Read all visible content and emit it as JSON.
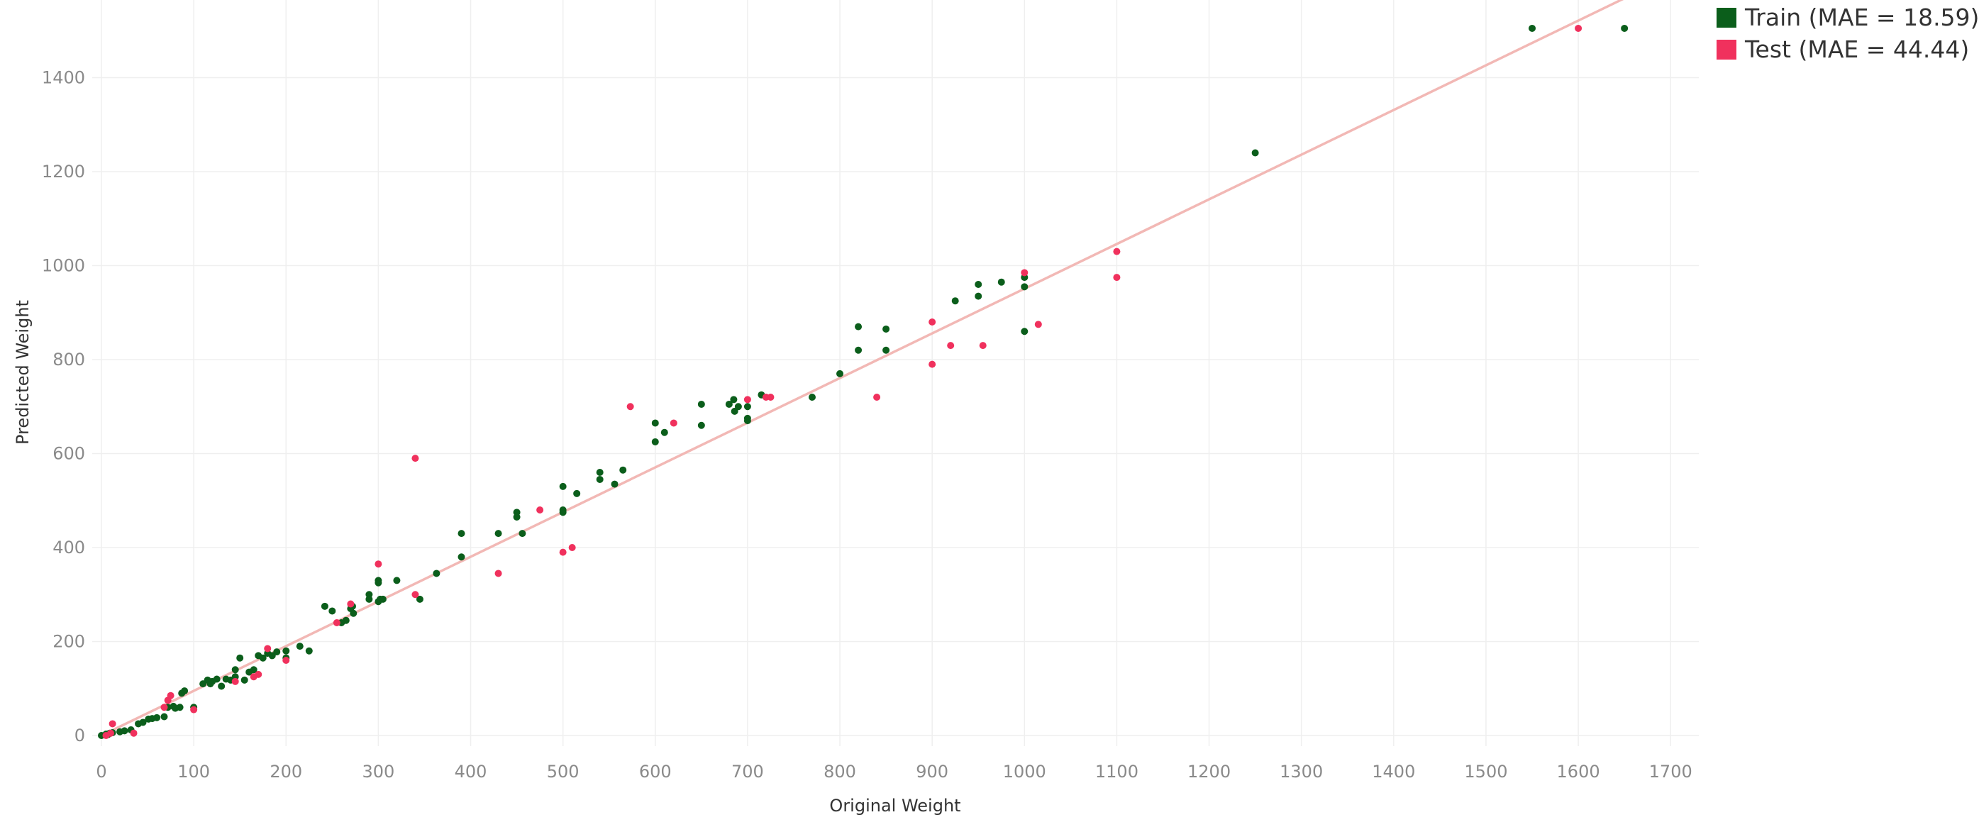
{
  "chart_data": {
    "type": "scatter",
    "title": "",
    "xlabel": "Original Weight",
    "ylabel": "Predicted Weight",
    "xlim": [
      -10,
      1730
    ],
    "ylim": [
      -20,
      1580
    ],
    "x_ticks": [
      0,
      100,
      200,
      300,
      400,
      500,
      600,
      700,
      800,
      900,
      1000,
      1100,
      1200,
      1300,
      1400,
      1500,
      1600,
      1700
    ],
    "y_ticks": [
      0,
      200,
      400,
      600,
      800,
      1000,
      1200,
      1400
    ],
    "grid": true,
    "legend_position": "top-right",
    "reference_line": {
      "from": [
        0,
        0
      ],
      "to": [
        1730,
        1645
      ],
      "color": "#f2b8b5"
    },
    "series": [
      {
        "name": "Train (MAE = 18.59)",
        "color": "#0b5e1b",
        "points": [
          [
            0,
            0
          ],
          [
            5,
            3
          ],
          [
            7,
            2
          ],
          [
            9,
            5
          ],
          [
            12,
            6
          ],
          [
            20,
            8
          ],
          [
            25,
            10
          ],
          [
            32,
            12
          ],
          [
            40,
            25
          ],
          [
            45,
            28
          ],
          [
            51,
            35
          ],
          [
            55,
            36
          ],
          [
            60,
            38
          ],
          [
            68,
            40
          ],
          [
            72,
            60
          ],
          [
            78,
            62
          ],
          [
            80,
            58
          ],
          [
            85,
            60
          ],
          [
            87,
            90
          ],
          [
            90,
            95
          ],
          [
            100,
            60
          ],
          [
            110,
            110
          ],
          [
            115,
            118
          ],
          [
            118,
            110
          ],
          [
            120,
            115
          ],
          [
            125,
            120
          ],
          [
            130,
            105
          ],
          [
            135,
            120
          ],
          [
            140,
            118
          ],
          [
            145,
            125
          ],
          [
            145,
            140
          ],
          [
            150,
            165
          ],
          [
            155,
            118
          ],
          [
            160,
            135
          ],
          [
            165,
            140
          ],
          [
            170,
            170
          ],
          [
            175,
            165
          ],
          [
            180,
            175
          ],
          [
            185,
            170
          ],
          [
            190,
            178
          ],
          [
            200,
            180
          ],
          [
            200,
            165
          ],
          [
            215,
            190
          ],
          [
            225,
            180
          ],
          [
            242,
            275
          ],
          [
            250,
            265
          ],
          [
            260,
            240
          ],
          [
            265,
            245
          ],
          [
            270,
            270
          ],
          [
            272,
            275
          ],
          [
            273,
            260
          ],
          [
            290,
            300
          ],
          [
            290,
            290
          ],
          [
            300,
            325
          ],
          [
            300,
            330
          ],
          [
            300,
            285
          ],
          [
            302,
            290
          ],
          [
            305,
            290
          ],
          [
            320,
            330
          ],
          [
            345,
            290
          ],
          [
            363,
            345
          ],
          [
            390,
            430
          ],
          [
            390,
            380
          ],
          [
            430,
            430
          ],
          [
            450,
            465
          ],
          [
            450,
            475
          ],
          [
            456,
            430
          ],
          [
            500,
            475
          ],
          [
            500,
            480
          ],
          [
            500,
            530
          ],
          [
            515,
            515
          ],
          [
            540,
            560
          ],
          [
            540,
            545
          ],
          [
            556,
            535
          ],
          [
            565,
            565
          ],
          [
            600,
            625
          ],
          [
            600,
            665
          ],
          [
            610,
            645
          ],
          [
            650,
            660
          ],
          [
            650,
            705
          ],
          [
            680,
            705
          ],
          [
            685,
            715
          ],
          [
            686,
            690
          ],
          [
            690,
            700
          ],
          [
            700,
            670
          ],
          [
            700,
            675
          ],
          [
            700,
            700
          ],
          [
            715,
            725
          ],
          [
            770,
            720
          ],
          [
            800,
            770
          ],
          [
            820,
            820
          ],
          [
            820,
            870
          ],
          [
            850,
            820
          ],
          [
            850,
            865
          ],
          [
            925,
            925
          ],
          [
            950,
            935
          ],
          [
            950,
            960
          ],
          [
            975,
            965
          ],
          [
            1000,
            860
          ],
          [
            1000,
            955
          ],
          [
            1000,
            975
          ],
          [
            1250,
            1240
          ],
          [
            1550,
            1505
          ],
          [
            1650,
            1505
          ]
        ]
      },
      {
        "name": "Test (MAE = 44.44)",
        "color": "#f0315d",
        "points": [
          [
            5,
            0
          ],
          [
            10,
            5
          ],
          [
            12,
            25
          ],
          [
            35,
            5
          ],
          [
            68,
            60
          ],
          [
            72,
            75
          ],
          [
            75,
            85
          ],
          [
            100,
            55
          ],
          [
            145,
            115
          ],
          [
            165,
            125
          ],
          [
            170,
            130
          ],
          [
            180,
            185
          ],
          [
            200,
            160
          ],
          [
            255,
            240
          ],
          [
            270,
            280
          ],
          [
            300,
            365
          ],
          [
            340,
            300
          ],
          [
            340,
            590
          ],
          [
            430,
            345
          ],
          [
            475,
            480
          ],
          [
            500,
            390
          ],
          [
            510,
            400
          ],
          [
            573,
            700
          ],
          [
            620,
            665
          ],
          [
            700,
            715
          ],
          [
            720,
            720
          ],
          [
            725,
            720
          ],
          [
            840,
            720
          ],
          [
            900,
            790
          ],
          [
            900,
            880
          ],
          [
            920,
            830
          ],
          [
            955,
            830
          ],
          [
            1000,
            985
          ],
          [
            1015,
            875
          ],
          [
            1100,
            975
          ],
          [
            1100,
            1030
          ],
          [
            1600,
            1505
          ]
        ]
      }
    ]
  }
}
